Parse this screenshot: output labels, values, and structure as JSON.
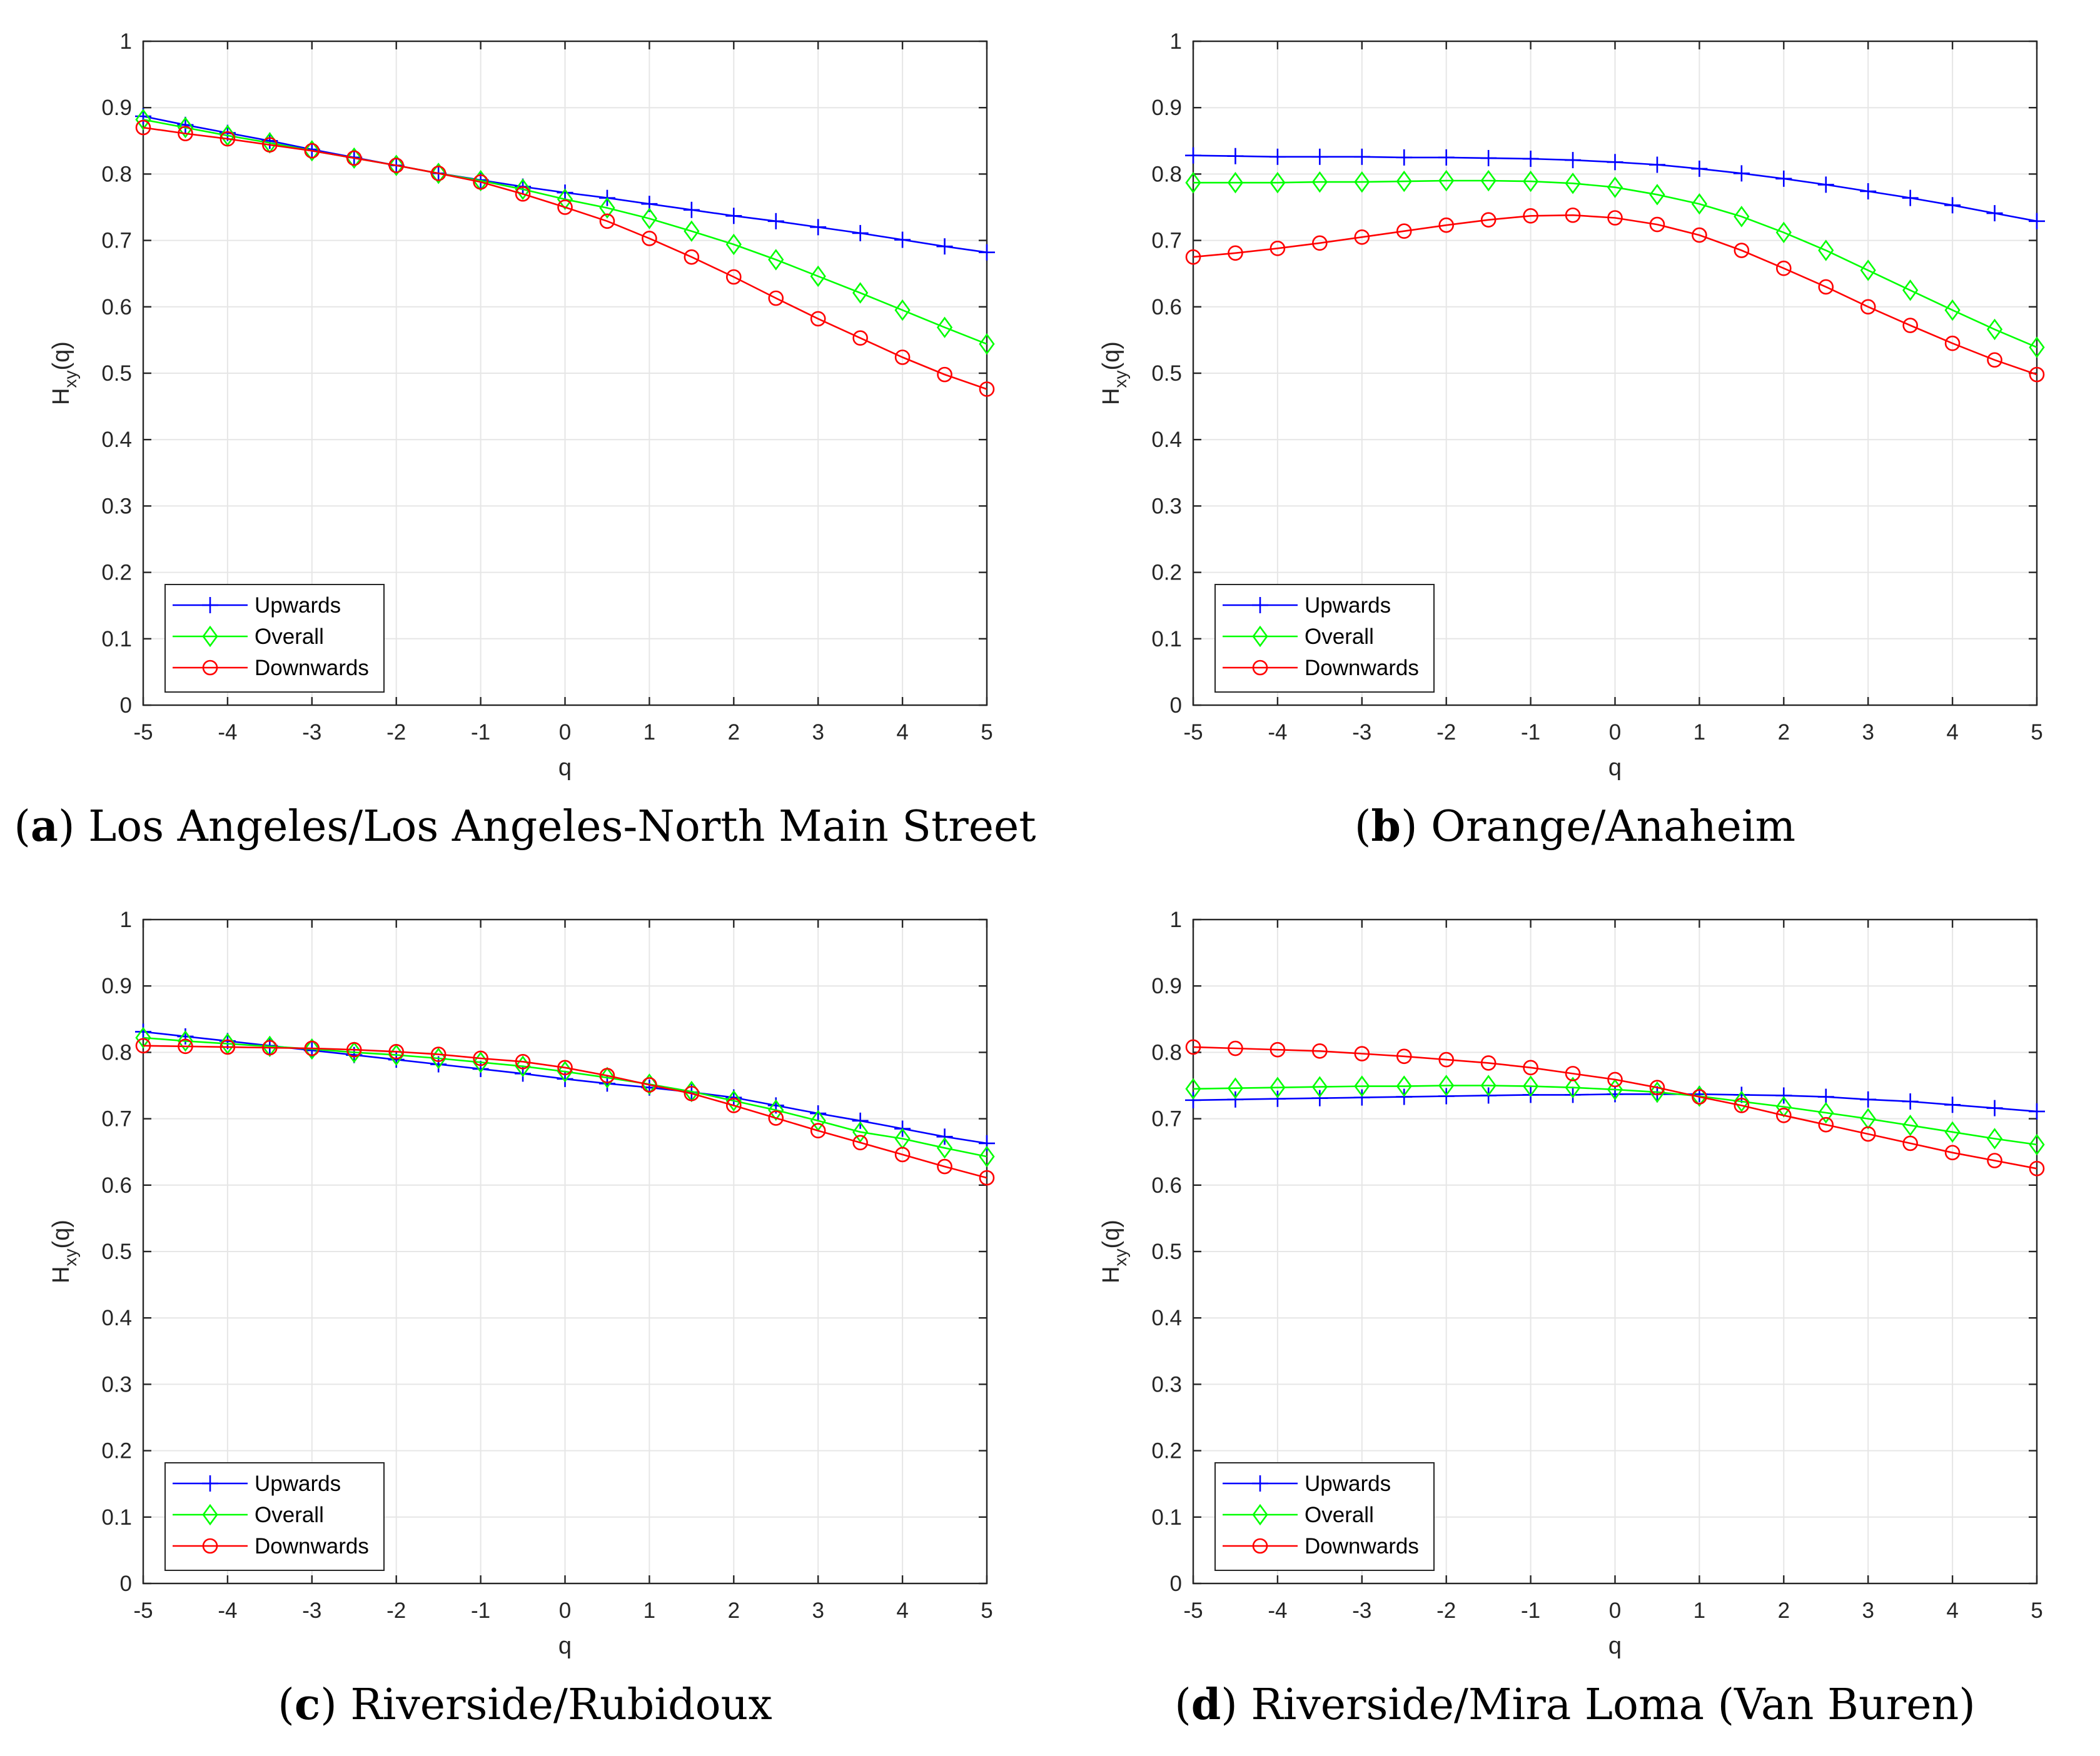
{
  "legend": {
    "upwards": "Upwards",
    "overall": "Overall",
    "downwards": "Downwards"
  },
  "colors": {
    "upwards": "#0000ff",
    "overall": "#00ff00",
    "downwards": "#ff0000"
  },
  "chart_data": [
    {
      "type": "line",
      "panel_letter": "a",
      "caption": "Los Angeles/Los Angeles-North Main Street",
      "xlabel": "q",
      "ylabel_main": "H",
      "ylabel_sub": "xy",
      "ylabel_tail": "(q)",
      "xlim": [
        -5,
        5
      ],
      "ylim": [
        0,
        1
      ],
      "xticks": [
        "-5",
        "-4",
        "-3",
        "-2",
        "-1",
        "0",
        "1",
        "2",
        "3",
        "4",
        "5"
      ],
      "yticks": [
        "0",
        "0.1",
        "0.2",
        "0.3",
        "0.4",
        "0.5",
        "0.6",
        "0.7",
        "0.8",
        "0.9",
        "1"
      ],
      "x": [
        -5,
        -4.5,
        -4,
        -3.5,
        -3,
        -2.5,
        -2,
        -1.5,
        -1,
        -0.5,
        0,
        0.5,
        1,
        1.5,
        2,
        2.5,
        3,
        3.5,
        4,
        4.5,
        5
      ],
      "series": [
        {
          "name": "Upwards",
          "values": [
            0.887,
            0.874,
            0.862,
            0.85,
            0.837,
            0.825,
            0.813,
            0.801,
            0.791,
            0.781,
            0.772,
            0.764,
            0.755,
            0.746,
            0.737,
            0.729,
            0.72,
            0.711,
            0.701,
            0.691,
            0.682
          ]
        },
        {
          "name": "Overall",
          "values": [
            0.882,
            0.87,
            0.858,
            0.847,
            0.835,
            0.824,
            0.813,
            0.801,
            0.79,
            0.777,
            0.762,
            0.749,
            0.733,
            0.714,
            0.694,
            0.671,
            0.646,
            0.621,
            0.595,
            0.569,
            0.544
          ]
        },
        {
          "name": "Downwards",
          "values": [
            0.87,
            0.861,
            0.853,
            0.844,
            0.835,
            0.824,
            0.813,
            0.801,
            0.788,
            0.77,
            0.75,
            0.729,
            0.703,
            0.675,
            0.645,
            0.613,
            0.582,
            0.553,
            0.524,
            0.498,
            0.476
          ]
        }
      ]
    },
    {
      "type": "line",
      "panel_letter": "b",
      "caption": "Orange/Anaheim",
      "xlabel": "q",
      "ylabel_main": "H",
      "ylabel_sub": "xy",
      "ylabel_tail": "(q)",
      "xlim": [
        -5,
        5
      ],
      "ylim": [
        0,
        1
      ],
      "xticks": [
        "-5",
        "-4",
        "-3",
        "-2",
        "-1",
        "0",
        "1",
        "2",
        "3",
        "4",
        "5"
      ],
      "yticks": [
        "0",
        "0.1",
        "0.2",
        "0.3",
        "0.4",
        "0.5",
        "0.6",
        "0.7",
        "0.8",
        "0.9",
        "1"
      ],
      "x": [
        -5,
        -4.5,
        -4,
        -3.5,
        -3,
        -2.5,
        -2,
        -1.5,
        -1,
        -0.5,
        0,
        0.5,
        1,
        1.5,
        2,
        2.5,
        3,
        3.5,
        4,
        4.5,
        5
      ],
      "series": [
        {
          "name": "Upwards",
          "values": [
            0.828,
            0.827,
            0.826,
            0.826,
            0.826,
            0.825,
            0.825,
            0.824,
            0.823,
            0.821,
            0.818,
            0.814,
            0.808,
            0.801,
            0.793,
            0.784,
            0.774,
            0.764,
            0.753,
            0.741,
            0.729
          ]
        },
        {
          "name": "Overall",
          "values": [
            0.787,
            0.787,
            0.787,
            0.788,
            0.788,
            0.789,
            0.79,
            0.79,
            0.789,
            0.786,
            0.78,
            0.769,
            0.755,
            0.736,
            0.712,
            0.685,
            0.655,
            0.625,
            0.595,
            0.566,
            0.539
          ]
        },
        {
          "name": "Downwards",
          "values": [
            0.675,
            0.681,
            0.688,
            0.696,
            0.705,
            0.714,
            0.723,
            0.731,
            0.737,
            0.738,
            0.734,
            0.724,
            0.708,
            0.685,
            0.658,
            0.63,
            0.6,
            0.572,
            0.545,
            0.52,
            0.498
          ]
        }
      ]
    },
    {
      "type": "line",
      "panel_letter": "c",
      "caption": "Riverside/Rubidoux",
      "xlabel": "q",
      "ylabel_main": "H",
      "ylabel_sub": "xy",
      "ylabel_tail": "(q)",
      "xlim": [
        -5,
        5
      ],
      "ylim": [
        0,
        1
      ],
      "xticks": [
        "-5",
        "-4",
        "-3",
        "-2",
        "-1",
        "0",
        "1",
        "2",
        "3",
        "4",
        "5"
      ],
      "yticks": [
        "0",
        "0.1",
        "0.2",
        "0.3",
        "0.4",
        "0.5",
        "0.6",
        "0.7",
        "0.8",
        "0.9",
        "1"
      ],
      "x": [
        -5,
        -4.5,
        -4,
        -3.5,
        -3,
        -2.5,
        -2,
        -1.5,
        -1,
        -0.5,
        0,
        0.5,
        1,
        1.5,
        2,
        2.5,
        3,
        3.5,
        4,
        4.5,
        5
      ],
      "series": [
        {
          "name": "Upwards",
          "values": [
            0.831,
            0.824,
            0.817,
            0.81,
            0.803,
            0.796,
            0.789,
            0.782,
            0.775,
            0.768,
            0.76,
            0.753,
            0.747,
            0.74,
            0.732,
            0.72,
            0.708,
            0.697,
            0.685,
            0.673,
            0.663
          ]
        },
        {
          "name": "Overall",
          "values": [
            0.822,
            0.817,
            0.813,
            0.809,
            0.805,
            0.8,
            0.796,
            0.791,
            0.785,
            0.779,
            0.771,
            0.762,
            0.752,
            0.741,
            0.727,
            0.713,
            0.697,
            0.68,
            0.67,
            0.656,
            0.643
          ]
        },
        {
          "name": "Downwards",
          "values": [
            0.81,
            0.809,
            0.808,
            0.807,
            0.806,
            0.804,
            0.801,
            0.797,
            0.791,
            0.786,
            0.777,
            0.765,
            0.751,
            0.738,
            0.72,
            0.701,
            0.682,
            0.664,
            0.646,
            0.628,
            0.611
          ]
        }
      ]
    },
    {
      "type": "line",
      "panel_letter": "d",
      "caption": "Riverside/Mira Loma (Van Buren)",
      "xlabel": "q",
      "ylabel_main": "H",
      "ylabel_sub": "xy",
      "ylabel_tail": "(q)",
      "xlim": [
        -5,
        5
      ],
      "ylim": [
        0,
        1
      ],
      "xticks": [
        "-5",
        "-4",
        "-3",
        "-2",
        "-1",
        "0",
        "1",
        "2",
        "3",
        "4",
        "5"
      ],
      "yticks": [
        "0",
        "0.1",
        "0.2",
        "0.3",
        "0.4",
        "0.5",
        "0.6",
        "0.7",
        "0.8",
        "0.9",
        "1"
      ],
      "x": [
        -5,
        -4.5,
        -4,
        -3.5,
        -3,
        -2.5,
        -2,
        -1.5,
        -1,
        -0.5,
        0,
        0.5,
        1,
        1.5,
        2,
        2.5,
        3,
        3.5,
        4,
        4.5,
        5
      ],
      "series": [
        {
          "name": "Upwards",
          "values": [
            0.728,
            0.729,
            0.73,
            0.731,
            0.732,
            0.733,
            0.734,
            0.735,
            0.736,
            0.736,
            0.737,
            0.737,
            0.737,
            0.736,
            0.735,
            0.733,
            0.729,
            0.726,
            0.721,
            0.716,
            0.711
          ]
        },
        {
          "name": "Overall",
          "values": [
            0.745,
            0.746,
            0.747,
            0.748,
            0.749,
            0.749,
            0.75,
            0.75,
            0.749,
            0.747,
            0.744,
            0.74,
            0.734,
            0.726,
            0.718,
            0.709,
            0.7,
            0.69,
            0.68,
            0.67,
            0.661
          ]
        },
        {
          "name": "Downwards",
          "values": [
            0.808,
            0.806,
            0.804,
            0.802,
            0.798,
            0.794,
            0.789,
            0.784,
            0.777,
            0.768,
            0.759,
            0.747,
            0.733,
            0.72,
            0.705,
            0.691,
            0.677,
            0.663,
            0.649,
            0.637,
            0.625
          ]
        }
      ]
    }
  ]
}
